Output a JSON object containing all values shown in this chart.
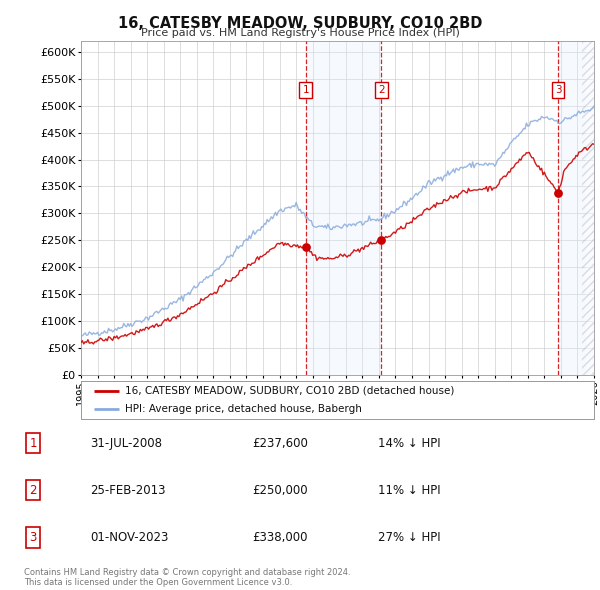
{
  "title": "16, CATESBY MEADOW, SUDBURY, CO10 2BD",
  "subtitle": "Price paid vs. HM Land Registry's House Price Index (HPI)",
  "ylim": [
    0,
    620000
  ],
  "yticks": [
    0,
    50000,
    100000,
    150000,
    200000,
    250000,
    300000,
    350000,
    400000,
    450000,
    500000,
    550000,
    600000
  ],
  "x_start_year": 1995,
  "x_end_year": 2026,
  "sale_color": "#cc0000",
  "hpi_color": "#88aadd",
  "hpi_fill_color": "#ddeeff",
  "hatch_color": "#bbbbcc",
  "sale_points": [
    {
      "year": 2008.58,
      "value": 237600,
      "label": "1"
    },
    {
      "year": 2013.15,
      "value": 250000,
      "label": "2"
    },
    {
      "year": 2023.83,
      "value": 338000,
      "label": "3"
    }
  ],
  "vline_years": [
    2008.58,
    2013.15,
    2023.83
  ],
  "legend_entries": [
    "16, CATESBY MEADOW, SUDBURY, CO10 2BD (detached house)",
    "HPI: Average price, detached house, Babergh"
  ],
  "table_data": [
    {
      "num": "1",
      "date": "31-JUL-2008",
      "price": "£237,600",
      "pct": "14% ↓ HPI"
    },
    {
      "num": "2",
      "date": "25-FEB-2013",
      "price": "£250,000",
      "pct": "11% ↓ HPI"
    },
    {
      "num": "3",
      "date": "01-NOV-2023",
      "price": "£338,000",
      "pct": "27% ↓ HPI"
    }
  ],
  "footnote": "Contains HM Land Registry data © Crown copyright and database right 2024.\nThis data is licensed under the Open Government Licence v3.0.",
  "background_color": "#ffffff",
  "grid_color": "#cccccc"
}
